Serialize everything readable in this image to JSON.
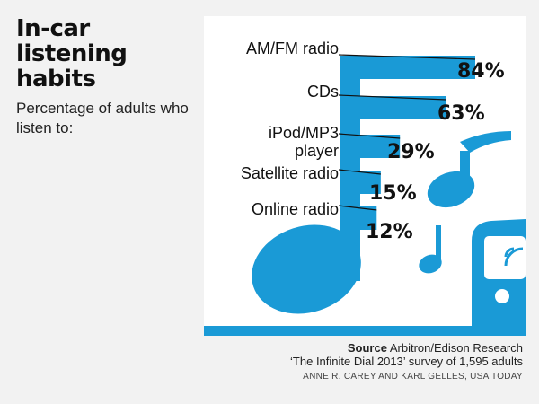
{
  "title": "In-car listening habits",
  "subtitle": "Percentage of adults who listen to:",
  "source": {
    "label": "Source",
    "org": "Arbitron/Edison Research",
    "detail": "‘The Infinite Dial 2013’ survey of 1,595 adults"
  },
  "credit": "ANNE R. CAREY AND KARL GELLES, USA TODAY",
  "colors": {
    "accent": "#1a9ad6",
    "ink": "#111111"
  },
  "chart_data": {
    "type": "bar",
    "categories": [
      "AM/FM radio",
      "CDs",
      "iPod/MP3 player",
      "Satellite radio",
      "Online radio"
    ],
    "values": [
      84,
      63,
      29,
      15,
      12
    ],
    "value_labels": [
      "84%",
      "63%",
      "29%",
      "15%",
      "12%"
    ],
    "category_lines": [
      [
        "AM/FM radio"
      ],
      [
        "CDs"
      ],
      [
        "iPod/MP3",
        "player"
      ],
      [
        "Satellite radio"
      ],
      [
        "Online radio"
      ]
    ],
    "unit": "%"
  }
}
